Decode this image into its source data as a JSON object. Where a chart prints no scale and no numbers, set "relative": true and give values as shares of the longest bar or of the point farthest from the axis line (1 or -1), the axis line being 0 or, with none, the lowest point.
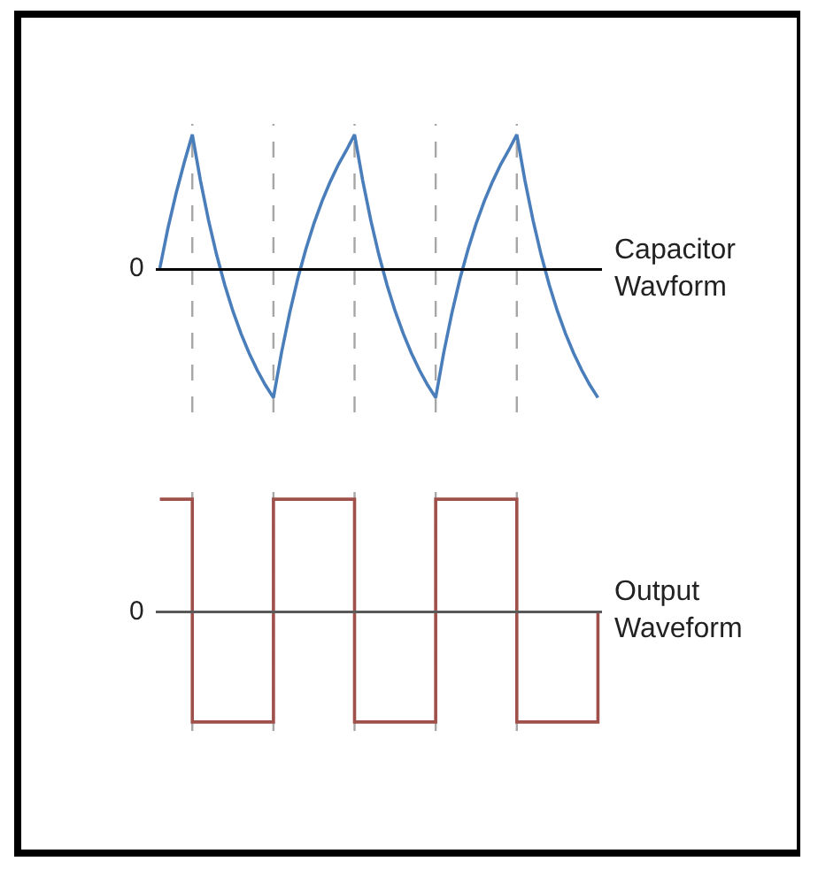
{
  "chart_data": [
    {
      "type": "line",
      "relative": true,
      "categories": [
        null,
        null,
        null,
        null,
        null,
        null,
        null,
        null,
        null,
        null,
        null,
        null,
        null,
        null,
        null,
        null,
        null,
        null,
        null,
        null,
        null,
        null,
        null,
        null,
        null,
        null,
        null,
        null,
        null,
        null,
        null,
        null,
        null,
        null,
        null,
        null,
        null,
        null,
        null,
        null,
        null,
        null,
        null,
        null,
        null,
        null,
        null,
        null,
        null,
        null,
        null,
        null,
        null,
        null,
        null
      ],
      "series": [
        {
          "name": "Capacitor Wavform",
          "color": "#4a7ebb",
          "values": [
            0,
            0.3,
            0.56,
            0.79,
            1,
            0.657,
            0.358,
            0.099,
            -0.126,
            -0.321,
            -0.49,
            -0.636,
            -0.764,
            -0.875,
            -0.97,
            -0.631,
            -0.335,
            -0.078,
            0.143,
            0.336,
            0.503,
            0.647,
            0.775,
            0.883,
            1,
            0.657,
            0.358,
            0.099,
            -0.126,
            -0.321,
            -0.49,
            -0.636,
            -0.764,
            -0.875,
            -0.97,
            -0.631,
            -0.335,
            -0.078,
            0.143,
            0.336,
            0.503,
            0.647,
            0.775,
            0.883,
            1,
            0.657,
            0.358,
            0.099,
            -0.126,
            -0.321,
            -0.49,
            -0.636,
            -0.764,
            -0.875,
            -0.97
          ]
        }
      ],
      "grid": "x",
      "annotations": [
        "0"
      ]
    },
    {
      "type": "step",
      "relative": true,
      "categories": [
        null,
        null,
        null,
        null,
        null,
        null,
        null,
        null,
        null,
        null,
        null,
        null,
        null,
        null,
        null,
        null,
        null,
        null,
        null,
        null,
        null,
        null,
        null,
        null,
        null,
        null,
        null,
        null,
        null,
        null,
        null,
        null,
        null,
        null,
        null,
        null,
        null,
        null,
        null,
        null,
        null,
        null,
        null,
        null,
        null,
        null,
        null,
        null,
        null,
        null,
        null,
        null,
        null,
        null,
        null
      ],
      "series": [
        {
          "name": "Output Waveform",
          "color": "#a0504a",
          "values": [
            1,
            1,
            1,
            1,
            -1,
            -1,
            -1,
            -1,
            -1,
            -1,
            -1,
            -1,
            -1,
            -1,
            1,
            1,
            1,
            1,
            1,
            1,
            1,
            1,
            1,
            1,
            -1,
            -1,
            -1,
            -1,
            -1,
            -1,
            -1,
            -1,
            -1,
            -1,
            1,
            1,
            1,
            1,
            1,
            1,
            1,
            1,
            1,
            1,
            -1,
            -1,
            -1,
            -1,
            -1,
            -1,
            -1,
            -1,
            -1,
            -1,
            0
          ]
        }
      ],
      "grid": "x",
      "annotations": [
        "0"
      ]
    }
  ]
}
